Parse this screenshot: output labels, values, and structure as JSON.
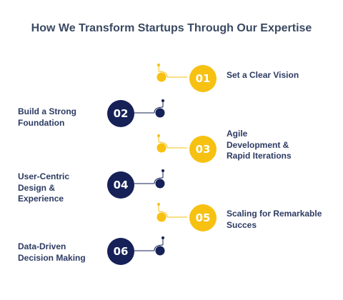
{
  "title": "How We Transform Startups Through Our Expertise",
  "colors": {
    "yellow": "#f6c111",
    "navy": "#152157",
    "title": "#3a4a63",
    "text": "#2d3b63"
  },
  "steps": [
    {
      "number": "01",
      "label": "Set a Clear Vision",
      "side": "right",
      "color": "yellow"
    },
    {
      "number": "02",
      "label": "Build a Strong Foundation",
      "side": "left",
      "color": "navy"
    },
    {
      "number": "03",
      "label": "Agile Development & Rapid Iterations",
      "side": "right",
      "color": "yellow"
    },
    {
      "number": "04",
      "label": "User-Centric Design & Experience",
      "side": "left",
      "color": "navy"
    },
    {
      "number": "05",
      "label": "Scaling for Remarkable Succes",
      "side": "right",
      "color": "yellow"
    },
    {
      "number": "06",
      "label": "Data-Driven Decision Making",
      "side": "left",
      "color": "navy"
    }
  ]
}
